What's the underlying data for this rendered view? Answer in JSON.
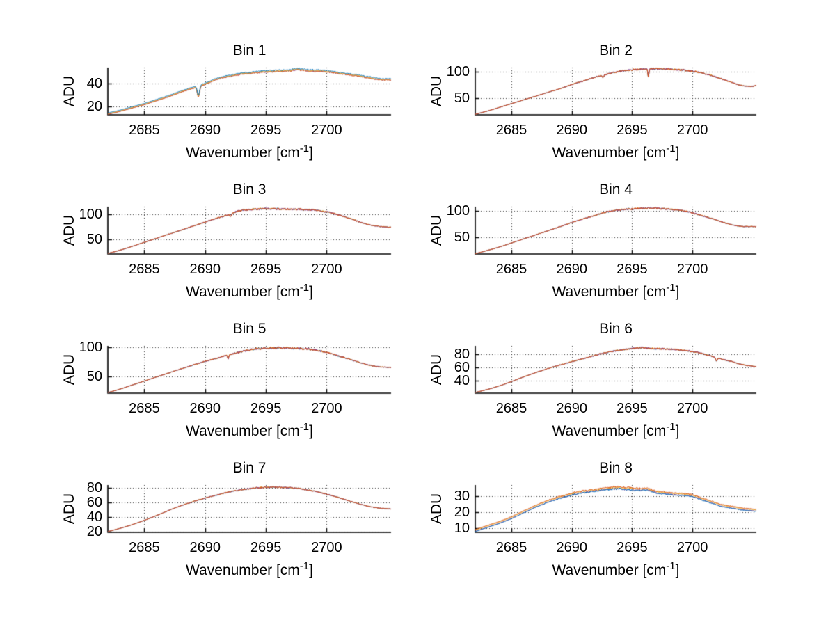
{
  "figure": {
    "background": "#ffffff",
    "text_color": "#000000"
  },
  "chart_data": [
    {
      "type": "line",
      "title": "Bin 1",
      "ylabel": "ADU",
      "xlabel_base": "Wavenumber [cm",
      "xlabel_sup": "-1",
      "xlabel_end": "]",
      "xlim": [
        2682,
        2705.3
      ],
      "ylim": [
        12.5,
        54.5
      ],
      "xticks": [
        2685,
        2690,
        2695,
        2700
      ],
      "yticks": [
        20,
        40
      ],
      "grid": true,
      "grid_line_style": "dotted",
      "box": "off",
      "noise": 0.9,
      "seed": 11,
      "x_keypoints": [
        2682,
        2683,
        2684,
        2685,
        2686,
        2687,
        2688,
        2689,
        2690,
        2691,
        2692,
        2693,
        2694,
        2695,
        2696,
        2697,
        2697.6,
        2698.5,
        2699.5,
        2700.5,
        2701.5,
        2702.5,
        2703.5,
        2704.5,
        2705.3
      ],
      "y_keypoints": [
        13,
        15.5,
        18.5,
        21.5,
        25,
        28.5,
        32.5,
        36,
        39.5,
        44,
        46.5,
        48.5,
        49.5,
        50.5,
        51,
        51.5,
        52.5,
        51.5,
        51,
        50,
        48.5,
        47,
        45,
        43.5,
        43.5
      ],
      "features": [
        {
          "x": 2689.45,
          "depth": -9,
          "width": 0.13
        }
      ],
      "series": [
        {
          "name": "series-purple",
          "color": "#7E2F8E",
          "offset": 0.1,
          "decor": 0.5
        },
        {
          "name": "series-orange",
          "color": "#D95319",
          "offset": 0.0,
          "decor": 0.4
        },
        {
          "name": "series-yellow",
          "color": "#EDB120",
          "offset": 0.55,
          "decor": 0.5
        },
        {
          "name": "series-blue",
          "color": "#0072BD",
          "offset": 1.2,
          "decor": 0.5
        }
      ]
    },
    {
      "type": "line",
      "title": "Bin 2",
      "ylabel": "ADU",
      "xlabel_base": "Wavenumber [cm",
      "xlabel_sup": "-1",
      "xlabel_end": "]",
      "xlim": [
        2682,
        2705.3
      ],
      "ylim": [
        19,
        108
      ],
      "xticks": [
        2685,
        2690,
        2695,
        2700
      ],
      "yticks": [
        50,
        100
      ],
      "grid": true,
      "grid_line_style": "dotted",
      "box": "off",
      "noise": 2.2,
      "seed": 22,
      "x_keypoints": [
        2682,
        2683,
        2684,
        2685,
        2686,
        2687,
        2688,
        2689,
        2690,
        2691,
        2692,
        2693,
        2694,
        2695,
        2696,
        2697,
        2698,
        2699,
        2700,
        2701,
        2702,
        2703,
        2704,
        2704.8,
        2705.3
      ],
      "y_keypoints": [
        20,
        26,
        33,
        40,
        47,
        54,
        61,
        68,
        76,
        83,
        90,
        96,
        101,
        103.5,
        105,
        105.5,
        105,
        103.5,
        101,
        96.5,
        90,
        82,
        74.5,
        72.5,
        74
      ],
      "features": [
        {
          "x": 2696.35,
          "depth": -15,
          "width": 0.06
        },
        {
          "x": 2692.6,
          "depth": -5,
          "width": 0.07
        }
      ],
      "series": [
        {
          "name": "series-blue",
          "color": "#0072BD",
          "offset": 0.0,
          "decor": 0.5
        },
        {
          "name": "series-yellow",
          "color": "#EDB120",
          "offset": 0.15,
          "decor": 0.5
        },
        {
          "name": "series-purple",
          "color": "#7E2F8E",
          "offset": 0.1,
          "decor": 0.8
        },
        {
          "name": "series-orange",
          "color": "#D95319",
          "offset": 0.0,
          "decor": 0.4
        }
      ]
    },
    {
      "type": "line",
      "title": "Bin 3",
      "ylabel": "ADU",
      "xlabel_base": "Wavenumber [cm",
      "xlabel_sup": "-1",
      "xlabel_end": "]",
      "xlim": [
        2682,
        2705.3
      ],
      "ylim": [
        21,
        114.5
      ],
      "xticks": [
        2685,
        2690,
        2695,
        2700
      ],
      "yticks": [
        50,
        100
      ],
      "grid": true,
      "grid_line_style": "dotted",
      "box": "off",
      "noise": 2.4,
      "seed": 33,
      "x_keypoints": [
        2682,
        2683,
        2684,
        2685,
        2686,
        2687,
        2688,
        2689,
        2690,
        2691,
        2692,
        2692.5,
        2693,
        2694,
        2695,
        2696,
        2697,
        2698,
        2699,
        2700,
        2701,
        2702,
        2703,
        2704,
        2705.3
      ],
      "y_keypoints": [
        22,
        28.5,
        36,
        44,
        52,
        60,
        68,
        76,
        84,
        92,
        99,
        104,
        107,
        109,
        110.5,
        110,
        109.5,
        109,
        107.5,
        104,
        98,
        90.5,
        82,
        76.5,
        73.5
      ],
      "features": [
        {
          "x": 2692.1,
          "depth": -5,
          "width": 0.08
        }
      ],
      "series": [
        {
          "name": "series-blue",
          "color": "#0072BD",
          "offset": 0.0,
          "decor": 0.5
        },
        {
          "name": "series-yellow",
          "color": "#EDB120",
          "offset": 0.15,
          "decor": 0.5
        },
        {
          "name": "series-purple",
          "color": "#7E2F8E",
          "offset": 0.1,
          "decor": 0.8
        },
        {
          "name": "series-orange",
          "color": "#D95319",
          "offset": 0.0,
          "decor": 0.4
        }
      ]
    },
    {
      "type": "line",
      "title": "Bin 4",
      "ylabel": "ADU",
      "xlabel_base": "Wavenumber [cm",
      "xlabel_sup": "-1",
      "xlabel_end": "]",
      "xlim": [
        2682,
        2705.3
      ],
      "ylim": [
        19.5,
        107.5
      ],
      "xticks": [
        2685,
        2690,
        2695,
        2700
      ],
      "yticks": [
        50,
        100
      ],
      "grid": true,
      "grid_line_style": "dotted",
      "box": "off",
      "noise": 2.0,
      "seed": 44,
      "x_keypoints": [
        2682,
        2683,
        2684,
        2685,
        2686,
        2687,
        2688,
        2689,
        2690,
        2691,
        2692,
        2693,
        2694,
        2695,
        2696,
        2697,
        2698,
        2699,
        2700,
        2701,
        2702,
        2703,
        2704,
        2705.3
      ],
      "y_keypoints": [
        20,
        26,
        32.5,
        40,
        47.5,
        55,
        62.5,
        70,
        78,
        85,
        92,
        98,
        101.5,
        103.5,
        104.5,
        104.5,
        103,
        100.5,
        96,
        89.5,
        82.5,
        75.5,
        71,
        70.5
      ],
      "features": [],
      "series": [
        {
          "name": "series-blue",
          "color": "#0072BD",
          "offset": 0.0,
          "decor": 0.5
        },
        {
          "name": "series-yellow",
          "color": "#EDB120",
          "offset": 0.15,
          "decor": 0.5
        },
        {
          "name": "series-purple",
          "color": "#7E2F8E",
          "offset": 0.1,
          "decor": 0.8
        },
        {
          "name": "series-orange",
          "color": "#D95319",
          "offset": 0.0,
          "decor": 0.4
        }
      ]
    },
    {
      "type": "line",
      "title": "Bin 5",
      "ylabel": "ADU",
      "xlabel_base": "Wavenumber [cm",
      "xlabel_sup": "-1",
      "xlabel_end": "]",
      "xlim": [
        2682,
        2705.3
      ],
      "ylim": [
        21,
        103
      ],
      "xticks": [
        2685,
        2690,
        2695,
        2700
      ],
      "yticks": [
        50,
        100
      ],
      "grid": true,
      "grid_line_style": "dotted",
      "box": "off",
      "noise": 2.2,
      "seed": 55,
      "x_keypoints": [
        2682,
        2683,
        2684,
        2685,
        2686,
        2687,
        2688,
        2689,
        2690,
        2691,
        2692,
        2693,
        2694,
        2695,
        2696,
        2697,
        2698,
        2699,
        2700,
        2701,
        2702,
        2703,
        2704,
        2705.3
      ],
      "y_keypoints": [
        22,
        28,
        35,
        42,
        49,
        56,
        63,
        69.5,
        76,
        82,
        87.5,
        93,
        97,
        99,
        99.5,
        99,
        98,
        96,
        91.5,
        85.5,
        79,
        72.5,
        67.5,
        65.5
      ],
      "features": [
        {
          "x": 2691.9,
          "depth": -6,
          "width": 0.07
        }
      ],
      "series": [
        {
          "name": "series-blue",
          "color": "#0072BD",
          "offset": 0.0,
          "decor": 0.5
        },
        {
          "name": "series-yellow",
          "color": "#EDB120",
          "offset": 0.15,
          "decor": 0.5
        },
        {
          "name": "series-purple",
          "color": "#7E2F8E",
          "offset": 0.1,
          "decor": 0.8
        },
        {
          "name": "series-orange",
          "color": "#D95319",
          "offset": 0.0,
          "decor": 0.4
        }
      ]
    },
    {
      "type": "line",
      "title": "Bin 6",
      "ylabel": "ADU",
      "xlabel_base": "Wavenumber [cm",
      "xlabel_sup": "-1",
      "xlabel_end": "]",
      "xlim": [
        2682,
        2705.3
      ],
      "ylim": [
        21,
        92.5
      ],
      "xticks": [
        2685,
        2690,
        2695,
        2700
      ],
      "yticks": [
        40,
        60,
        80
      ],
      "grid": true,
      "grid_line_style": "dotted",
      "box": "off",
      "noise": 1.7,
      "seed": 66,
      "x_keypoints": [
        2682,
        2683,
        2684,
        2685,
        2686,
        2687,
        2688,
        2689,
        2690,
        2691,
        2692,
        2693,
        2694,
        2695,
        2695.8,
        2696.8,
        2697.8,
        2698.8,
        2699.8,
        2700.6,
        2701.3,
        2702,
        2702.6,
        2703.2,
        2704,
        2705.3
      ],
      "y_keypoints": [
        22,
        26.5,
        32,
        38.5,
        45.5,
        52,
        58,
        63.5,
        68.5,
        73.5,
        78.5,
        83,
        86,
        88.5,
        89.5,
        88.5,
        88,
        86.5,
        84.5,
        82,
        78,
        74.5,
        71.5,
        69,
        64.5,
        61
      ],
      "features": [
        {
          "x": 2702.0,
          "depth": -5,
          "width": 0.09
        }
      ],
      "series": [
        {
          "name": "series-blue",
          "color": "#0072BD",
          "offset": 0.0,
          "decor": 0.5
        },
        {
          "name": "series-yellow",
          "color": "#EDB120",
          "offset": 0.15,
          "decor": 0.5
        },
        {
          "name": "series-purple",
          "color": "#7E2F8E",
          "offset": 0.1,
          "decor": 0.8
        },
        {
          "name": "series-orange",
          "color": "#D95319",
          "offset": 0.0,
          "decor": 0.4
        }
      ]
    },
    {
      "type": "line",
      "title": "Bin 7",
      "ylabel": "ADU",
      "xlabel_base": "Wavenumber [cm",
      "xlabel_sup": "-1",
      "xlabel_end": "]",
      "xlim": [
        2682,
        2705.3
      ],
      "ylim": [
        19,
        84
      ],
      "xticks": [
        2685,
        2690,
        2695,
        2700
      ],
      "yticks": [
        20,
        40,
        60,
        80
      ],
      "grid": true,
      "grid_line_style": "dotted",
      "box": "off",
      "noise": 1.3,
      "seed": 77,
      "x_keypoints": [
        2682,
        2683,
        2684,
        2685,
        2686,
        2687,
        2688,
        2689,
        2690,
        2691,
        2692,
        2693,
        2694,
        2695,
        2696,
        2697,
        2698,
        2699,
        2700,
        2701,
        2702,
        2703,
        2704,
        2705.3
      ],
      "y_keypoints": [
        20,
        24.5,
        29.5,
        35.5,
        42,
        49,
        55.5,
        61,
        66,
        70.5,
        74.5,
        77.5,
        79.5,
        81,
        81,
        80,
        78.5,
        75.5,
        71.5,
        66.5,
        61.5,
        56.5,
        53,
        51
      ],
      "features": [],
      "series": [
        {
          "name": "series-blue",
          "color": "#0072BD",
          "offset": 0.0,
          "decor": 0.5
        },
        {
          "name": "series-yellow",
          "color": "#EDB120",
          "offset": 0.15,
          "decor": 0.5
        },
        {
          "name": "series-purple",
          "color": "#7E2F8E",
          "offset": 0.1,
          "decor": 0.8
        },
        {
          "name": "series-orange",
          "color": "#D95319",
          "offset": 0.0,
          "decor": 0.4
        }
      ]
    },
    {
      "type": "line",
      "title": "Bin 8",
      "ylabel": "ADU",
      "xlabel_base": "Wavenumber [cm",
      "xlabel_sup": "-1",
      "xlabel_end": "]",
      "xlim": [
        2682,
        2705.3
      ],
      "ylim": [
        7.5,
        36.8
      ],
      "xticks": [
        2685,
        2690,
        2695,
        2700
      ],
      "yticks": [
        10,
        20,
        30
      ],
      "grid": true,
      "grid_line_style": "dotted",
      "box": "off",
      "noise": 0.8,
      "seed": 88,
      "x_keypoints": [
        2682,
        2683,
        2684,
        2685,
        2686,
        2687,
        2688,
        2689,
        2690,
        2691,
        2692,
        2693,
        2693.8,
        2694.6,
        2695.4,
        2696.2,
        2697,
        2698,
        2699,
        2700,
        2700.8,
        2701.6,
        2702.4,
        2703.2,
        2704,
        2705.3
      ],
      "y_keypoints": [
        8,
        10.5,
        13,
        16,
        19.5,
        23,
        26,
        28.5,
        30.5,
        32,
        33,
        34,
        34.5,
        34,
        33.5,
        33.5,
        32,
        31,
        30.5,
        29.5,
        27.5,
        25.5,
        23.5,
        22.5,
        21.5,
        20.5
      ],
      "features": [],
      "series": [
        {
          "name": "series-purple",
          "color": "#7E2F8E",
          "offset": 0.15,
          "decor": 0.6
        },
        {
          "name": "series-blue",
          "color": "#0072BD",
          "offset": 0.0,
          "decor": 0.4
        },
        {
          "name": "series-yellow",
          "color": "#EDB120",
          "offset": 0.9,
          "decor": 0.5
        },
        {
          "name": "series-orange",
          "color": "#D95319",
          "offset": 1.3,
          "decor": 0.5
        }
      ]
    }
  ]
}
